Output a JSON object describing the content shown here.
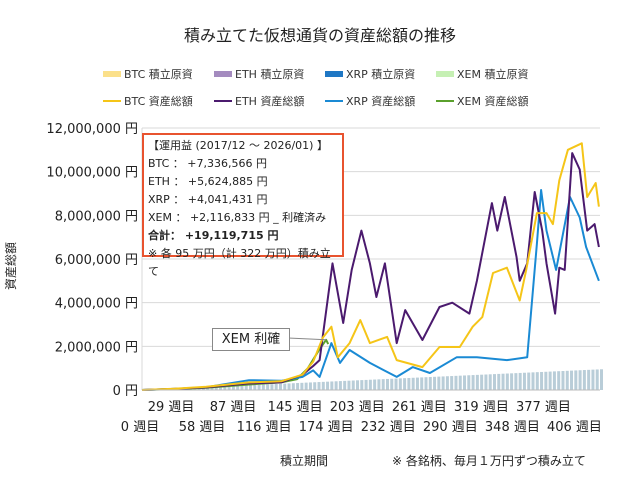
{
  "chart_data": {
    "type": "line",
    "title": "積み立てた仮想通貨の資産総額の推移",
    "xlabel": "積立期間",
    "ylabel": "資産総額",
    "footnote": "※ 各銘柄、毎月１万円ずつ積み立て",
    "ylim": [
      0,
      12000000
    ],
    "xlim": [
      0,
      428
    ],
    "y_ticks": [
      "0 円",
      "2,000,000 円",
      "4,000,000 円",
      "6,000,000 円",
      "8,000,000 円",
      "10,000,000 円",
      "12,000,000 円"
    ],
    "x_ticks": [
      "0 週目",
      "29 週目",
      "58 週目",
      "87 週目",
      "116 週目",
      "145 週目",
      "174 週目",
      "203 週目",
      "232 週目",
      "261 週目",
      "290 週目",
      "319 週目",
      "348 週目",
      "377 週目",
      "406 週目"
    ],
    "grid": true,
    "legend_placement": "top",
    "legend": [
      {
        "label": "BTC  積立原資",
        "color": "#fbe08a",
        "kind": "bar"
      },
      {
        "label": "ETH  積立原資",
        "color": "#a48bbf",
        "kind": "bar"
      },
      {
        "label": "XRP  積立原資",
        "color": "#1f77c4",
        "kind": "bar"
      },
      {
        "label": "XEM  積立原資",
        "color": "#c6f0b4",
        "kind": "bar"
      },
      {
        "label": "BTC  資産総額",
        "color": "#f5c518",
        "kind": "line"
      },
      {
        "label": "ETH  資産総額",
        "color": "#4b1a6e",
        "kind": "line"
      },
      {
        "label": "XRP  資産総額",
        "color": "#1a8ad4",
        "kind": "line"
      },
      {
        "label": "XEM  資産総額",
        "color": "#5aa02c",
        "kind": "line"
      }
    ],
    "principal": {
      "x": [
        0,
        428
      ],
      "y": [
        0,
        950000
      ],
      "color": "#b9cdd8"
    },
    "series": [
      {
        "name": "BTC  資産総額",
        "color": "#f5c518",
        "x": [
          0,
          30,
          60,
          100,
          130,
          150,
          160,
          169,
          177,
          183,
          194,
          204,
          213,
          229,
          238,
          262,
          278,
          297,
          309,
          318,
          328,
          341,
          353,
          359,
          369,
          378,
          384,
          390,
          398,
          411,
          416,
          424,
          427
        ],
        "y": [
          0,
          60000,
          150000,
          350000,
          400000,
          700000,
          1300000,
          2400000,
          2900000,
          1500000,
          2150000,
          3200000,
          2150000,
          2430000,
          1370000,
          1050000,
          1970000,
          1970000,
          2900000,
          3340000,
          5360000,
          5600000,
          4100000,
          5500000,
          8100000,
          8100000,
          7600000,
          9600000,
          11000000,
          11300000,
          8840000,
          9480000,
          8400000
        ]
      },
      {
        "name": "ETH  資産総額",
        "color": "#4b1a6e",
        "x": [
          0,
          30,
          60,
          100,
          130,
          150,
          160,
          166,
          178,
          188,
          196,
          205,
          213,
          219,
          227,
          238,
          246,
          262,
          278,
          290,
          306,
          313,
          327,
          332,
          339,
          350,
          353,
          360,
          367,
          374,
          378,
          386,
          390,
          395,
          402,
          409,
          416,
          423,
          427
        ],
        "y": [
          0,
          50000,
          120000,
          300000,
          350000,
          700000,
          1100000,
          1370000,
          5800000,
          3070000,
          5500000,
          7300000,
          5800000,
          4260000,
          5800000,
          2150000,
          3660000,
          2290000,
          3800000,
          4000000,
          3500000,
          5000000,
          8560000,
          7300000,
          8840000,
          6100000,
          5000000,
          5800000,
          9070000,
          7300000,
          5800000,
          3500000,
          5600000,
          5500000,
          10850000,
          10100000,
          7300000,
          7600000,
          6550000
        ]
      },
      {
        "name": "XRP  資産総額",
        "color": "#1a8ad4",
        "x": [
          0,
          30,
          60,
          100,
          130,
          150,
          160,
          166,
          177,
          185,
          194,
          213,
          238,
          253,
          269,
          294,
          313,
          341,
          360,
          369,
          373,
          378,
          387,
          400,
          409,
          415,
          427
        ],
        "y": [
          0,
          50000,
          130000,
          450000,
          420000,
          600000,
          900000,
          600000,
          2150000,
          1240000,
          1830000,
          1240000,
          600000,
          1050000,
          780000,
          1500000,
          1500000,
          1370000,
          1500000,
          6700000,
          9160000,
          7300000,
          5500000,
          8840000,
          7900000,
          6550000,
          5000000
        ]
      },
      {
        "name": "XEM  資産総額",
        "color": "#5aa02c",
        "x": [
          0,
          30,
          60,
          100,
          130,
          145,
          155,
          165,
          172,
          174
        ],
        "y": [
          0,
          40000,
          100000,
          250000,
          350000,
          500000,
          1000000,
          1800000,
          2300000,
          2100000
        ]
      }
    ],
    "annotations": {
      "callout": "XEM 利確",
      "box_lines": [
        "【運用益 (2017/12 ～ 2026/01) 】",
        "BTC ： +7,336,566 円",
        "ETH ： +5,624,885 円",
        "XRP ： +4,041,431 円",
        "XEM ： +2,116,833 円 _ 利確済み",
        "合計： +19,119,715 円",
        "※ 各 95 万円（計 322 万円）積み立て"
      ]
    }
  }
}
